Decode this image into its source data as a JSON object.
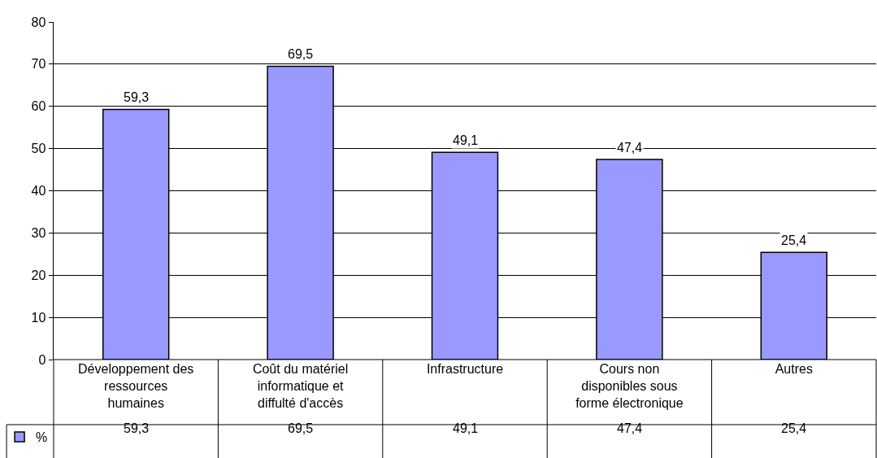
{
  "chart_data": {
    "type": "bar",
    "categories": [
      "Développement des ressources humaines",
      "Coût du matériel informatique et diffulté d'accès",
      "Infrastructure",
      "Cours non disponibles sous forme électronique",
      "Autres"
    ],
    "series": [
      {
        "name": "%",
        "color": "#9999ff",
        "values": [
          59.3,
          69.5,
          49.1,
          47.4,
          25.4
        ],
        "value_labels": [
          "59,3",
          "69,5",
          "49,1",
          "47,4",
          "25,4"
        ]
      }
    ],
    "ylim": [
      0,
      80
    ],
    "yticks": [
      0,
      10,
      20,
      30,
      40,
      50,
      60,
      70,
      80
    ],
    "grid": "y",
    "legend": "bottom left"
  }
}
